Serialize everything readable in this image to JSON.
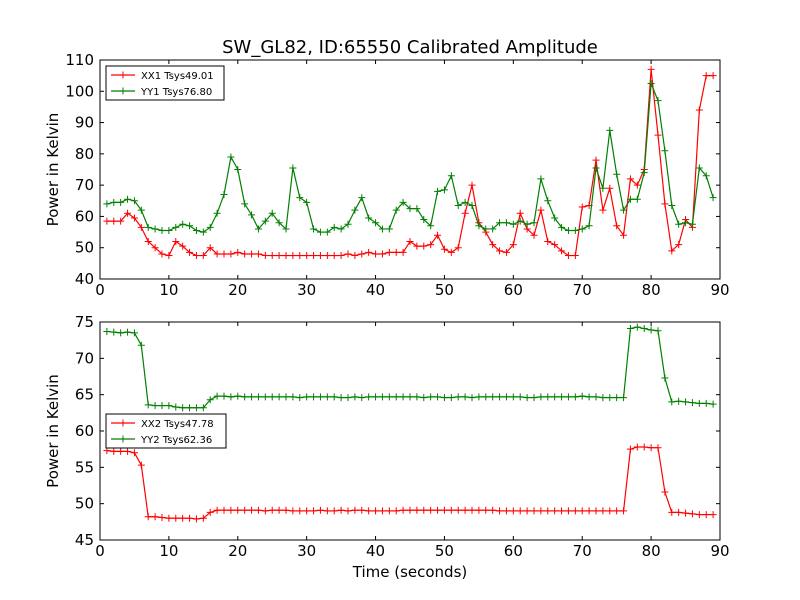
{
  "title": "SW_GL82, ID:65550 Calibrated Amplitude",
  "colors": {
    "xx": "#ff0000",
    "yy": "#008000"
  },
  "chart_data": [
    {
      "type": "line",
      "ylabel": "Power in Kelvin",
      "xlabel": "",
      "xlim": [
        0,
        90
      ],
      "ylim": [
        40,
        110
      ],
      "xticks": [
        0,
        10,
        20,
        30,
        40,
        50,
        60,
        70,
        80,
        90
      ],
      "yticks": [
        40,
        50,
        60,
        70,
        80,
        90,
        100,
        110
      ],
      "legend_position": "top-left",
      "grid": false,
      "x": [
        1,
        2,
        3,
        4,
        5,
        6,
        7,
        8,
        9,
        10,
        11,
        12,
        13,
        14,
        15,
        16,
        17,
        18,
        19,
        20,
        21,
        22,
        23,
        24,
        25,
        26,
        27,
        28,
        29,
        30,
        31,
        32,
        33,
        34,
        35,
        36,
        37,
        38,
        39,
        40,
        41,
        42,
        43,
        44,
        45,
        46,
        47,
        48,
        49,
        50,
        51,
        52,
        53,
        54,
        55,
        56,
        57,
        58,
        59,
        60,
        61,
        62,
        63,
        64,
        65,
        66,
        67,
        68,
        69,
        70,
        71,
        72,
        73,
        74,
        75,
        76,
        77,
        78,
        79,
        80,
        81,
        82,
        83,
        84,
        85,
        86,
        87,
        88,
        89
      ],
      "series": [
        {
          "name": "XX1 Tsys49.01",
          "color": "#ff0000",
          "values": [
            58.5,
            58.5,
            58.5,
            61,
            59.5,
            56.5,
            52,
            50,
            48,
            47.5,
            52,
            50.5,
            48.5,
            47.5,
            47.5,
            50,
            48,
            48,
            48,
            48.5,
            48,
            48,
            48,
            47.5,
            47.5,
            47.5,
            47.5,
            47.5,
            47.5,
            47.5,
            47.5,
            47.5,
            47.5,
            47.5,
            47.5,
            48,
            47.5,
            48,
            48.5,
            48,
            48,
            48.5,
            48.5,
            48.5,
            52,
            50.5,
            50.5,
            51,
            54,
            49.5,
            48.5,
            50,
            61,
            70,
            58,
            55,
            51,
            49,
            48.5,
            51,
            61,
            56,
            54,
            62,
            52,
            51,
            49,
            47.5,
            47.5,
            63,
            63.5,
            78,
            62,
            69,
            57,
            54,
            72,
            70,
            75,
            107,
            86,
            64,
            49,
            51,
            59,
            56.5,
            94,
            105,
            105
          ]
        },
        {
          "name": "YY1 Tsys76.80",
          "color": "#008000",
          "values": [
            64,
            64.5,
            64.5,
            65.5,
            65,
            62,
            56.5,
            56,
            55.5,
            55.5,
            56.5,
            57.5,
            57,
            55.5,
            55,
            56.5,
            61,
            67,
            79,
            75,
            64,
            60.5,
            56,
            58.5,
            61,
            58,
            56,
            75.5,
            66,
            64.5,
            56,
            55,
            55,
            56.5,
            56,
            57.5,
            62,
            66,
            59.5,
            58,
            56,
            56,
            62,
            64.5,
            62.5,
            62.5,
            59,
            57,
            68,
            68.5,
            73,
            63.5,
            64.5,
            63.5,
            57,
            56,
            56,
            58,
            58,
            57.5,
            58.5,
            57.5,
            58,
            72,
            65,
            59.5,
            56.5,
            55.5,
            55.5,
            56,
            57,
            75.5,
            69,
            87.5,
            73.5,
            62,
            65.5,
            65.5,
            74,
            102.5,
            97,
            81,
            63.5,
            57.5,
            58,
            57.5,
            75.5,
            73,
            66
          ]
        }
      ]
    },
    {
      "type": "line",
      "ylabel": "Power in Kelvin",
      "xlabel": "Time (seconds)",
      "xlim": [
        0,
        90
      ],
      "ylim": [
        45,
        75
      ],
      "xticks": [
        0,
        10,
        20,
        30,
        40,
        50,
        60,
        70,
        80,
        90
      ],
      "yticks": [
        45,
        50,
        55,
        60,
        65,
        70,
        75
      ],
      "legend_position": "center-left",
      "grid": false,
      "x": [
        1,
        2,
        3,
        4,
        5,
        6,
        7,
        8,
        9,
        10,
        11,
        12,
        13,
        14,
        15,
        16,
        17,
        18,
        19,
        20,
        21,
        22,
        23,
        24,
        25,
        26,
        27,
        28,
        29,
        30,
        31,
        32,
        33,
        34,
        35,
        36,
        37,
        38,
        39,
        40,
        41,
        42,
        43,
        44,
        45,
        46,
        47,
        48,
        49,
        50,
        51,
        52,
        53,
        54,
        55,
        56,
        57,
        58,
        59,
        60,
        61,
        62,
        63,
        64,
        65,
        66,
        67,
        68,
        69,
        70,
        71,
        72,
        73,
        74,
        75,
        76,
        77,
        78,
        79,
        80,
        81,
        82,
        83,
        84,
        85,
        86,
        87,
        88,
        89
      ],
      "series": [
        {
          "name": "XX2 Tsys47.78",
          "color": "#ff0000",
          "values": [
            57.3,
            57.2,
            57.2,
            57.2,
            57,
            55.3,
            48.2,
            48.2,
            48.1,
            48,
            48,
            48,
            48,
            47.9,
            48,
            48.8,
            49.1,
            49.1,
            49.1,
            49.1,
            49.1,
            49.1,
            49.1,
            49,
            49.1,
            49.1,
            49.1,
            49,
            49,
            49,
            49,
            49.1,
            49,
            49,
            49.1,
            49,
            49.1,
            49.1,
            49,
            49,
            49,
            49,
            49,
            49.1,
            49.1,
            49.1,
            49.1,
            49.1,
            49.1,
            49.1,
            49.1,
            49.1,
            49.1,
            49.1,
            49.1,
            49.1,
            49.1,
            49,
            49,
            49,
            49,
            49,
            49,
            49,
            49,
            49,
            49,
            49,
            49,
            49,
            49,
            49,
            49,
            49,
            49,
            49,
            57.5,
            57.8,
            57.8,
            57.7,
            57.7,
            51.6,
            48.8,
            48.8,
            48.7,
            48.6,
            48.5,
            48.5,
            48.5
          ]
        },
        {
          "name": "YY2 Tsys62.36",
          "color": "#008000",
          "values": [
            73.7,
            73.6,
            73.5,
            73.6,
            73.5,
            71.8,
            63.6,
            63.5,
            63.5,
            63.5,
            63.3,
            63.2,
            63.2,
            63.2,
            63.2,
            64.3,
            64.8,
            64.8,
            64.7,
            64.8,
            64.7,
            64.7,
            64.7,
            64.7,
            64.7,
            64.7,
            64.7,
            64.7,
            64.6,
            64.7,
            64.7,
            64.7,
            64.7,
            64.7,
            64.6,
            64.6,
            64.7,
            64.6,
            64.7,
            64.7,
            64.7,
            64.7,
            64.7,
            64.7,
            64.7,
            64.7,
            64.6,
            64.7,
            64.7,
            64.6,
            64.6,
            64.7,
            64.7,
            64.6,
            64.7,
            64.7,
            64.7,
            64.7,
            64.7,
            64.7,
            64.7,
            64.6,
            64.6,
            64.7,
            64.7,
            64.7,
            64.7,
            64.7,
            64.7,
            64.8,
            64.7,
            64.7,
            64.6,
            64.6,
            64.6,
            64.6,
            74.1,
            74.3,
            74.1,
            73.9,
            73.8,
            67.3,
            64,
            64.1,
            64,
            63.9,
            63.8,
            63.8,
            63.7
          ]
        }
      ]
    }
  ]
}
